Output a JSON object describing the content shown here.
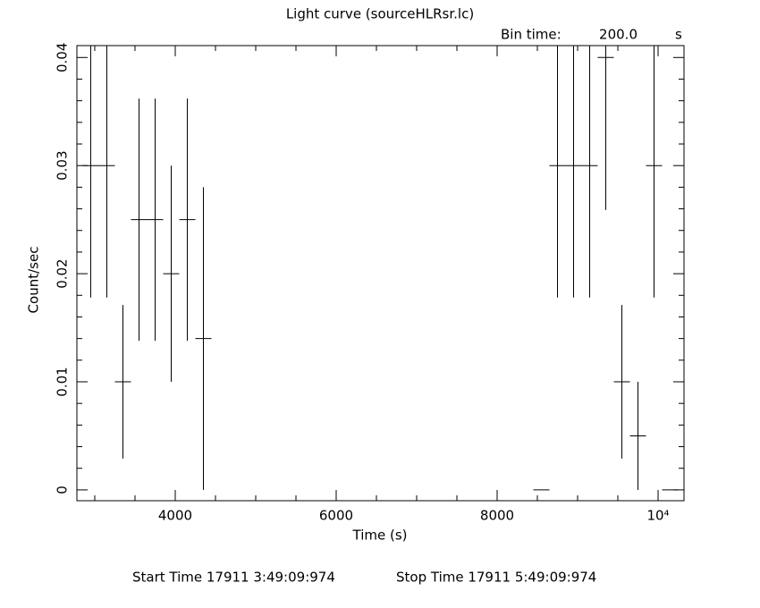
{
  "chart_data": {
    "type": "errorbar",
    "title": "Light curve (sourceHLRsr.lc)",
    "bin_time_label": "Bin time:",
    "bin_time": {
      "value": 200,
      "label": "200.0"
    },
    "bin_time_unit": "s",
    "xlabel": "Time (s)",
    "ylabel": "Count/sec",
    "footer_start": "Start Time 17911  3:49:09:974",
    "footer_stop": "Stop Time 17911  5:49:09:974",
    "color": "#000000",
    "x": [
      2950,
      3150,
      3350,
      3550,
      3750,
      3950,
      4150,
      4350,
      8550,
      8750,
      8950,
      9150,
      9350,
      9550,
      9750,
      9950,
      10150
    ],
    "values": [
      0.03,
      0.03,
      0.01,
      0.025,
      0.025,
      0.02,
      0.025,
      0.014,
      0,
      0.03,
      0.03,
      0.03,
      0.04,
      0.01,
      0.005,
      0.03,
      0
    ],
    "errors": [
      0.0122,
      0.0122,
      0.0071,
      0.0112,
      0.0112,
      0.01,
      0.0112,
      0.014,
      0,
      0.0122,
      0.0122,
      0.0122,
      0.0141,
      0.0071,
      0.005,
      0.0122,
      0
    ],
    "xlim": [
      2778,
      10322
    ],
    "ylim": [
      -0.001,
      0.0411
    ],
    "xticks": [
      4000,
      6000,
      8000,
      {
        "value": 10000,
        "label": "10⁴"
      }
    ],
    "xminorticks": [
      3000,
      3500,
      4500,
      5000,
      5500,
      6500,
      7000,
      7500,
      8500,
      9000,
      9500
    ],
    "yticks": [
      0,
      0.01,
      0.02,
      0.03,
      0.04
    ],
    "yminorticks": [
      0.002,
      0.004,
      0.006,
      0.008,
      0.012,
      0.014,
      0.016,
      0.018,
      0.022,
      0.024,
      0.026,
      0.028,
      0.032,
      0.034,
      0.036,
      0.038
    ]
  }
}
